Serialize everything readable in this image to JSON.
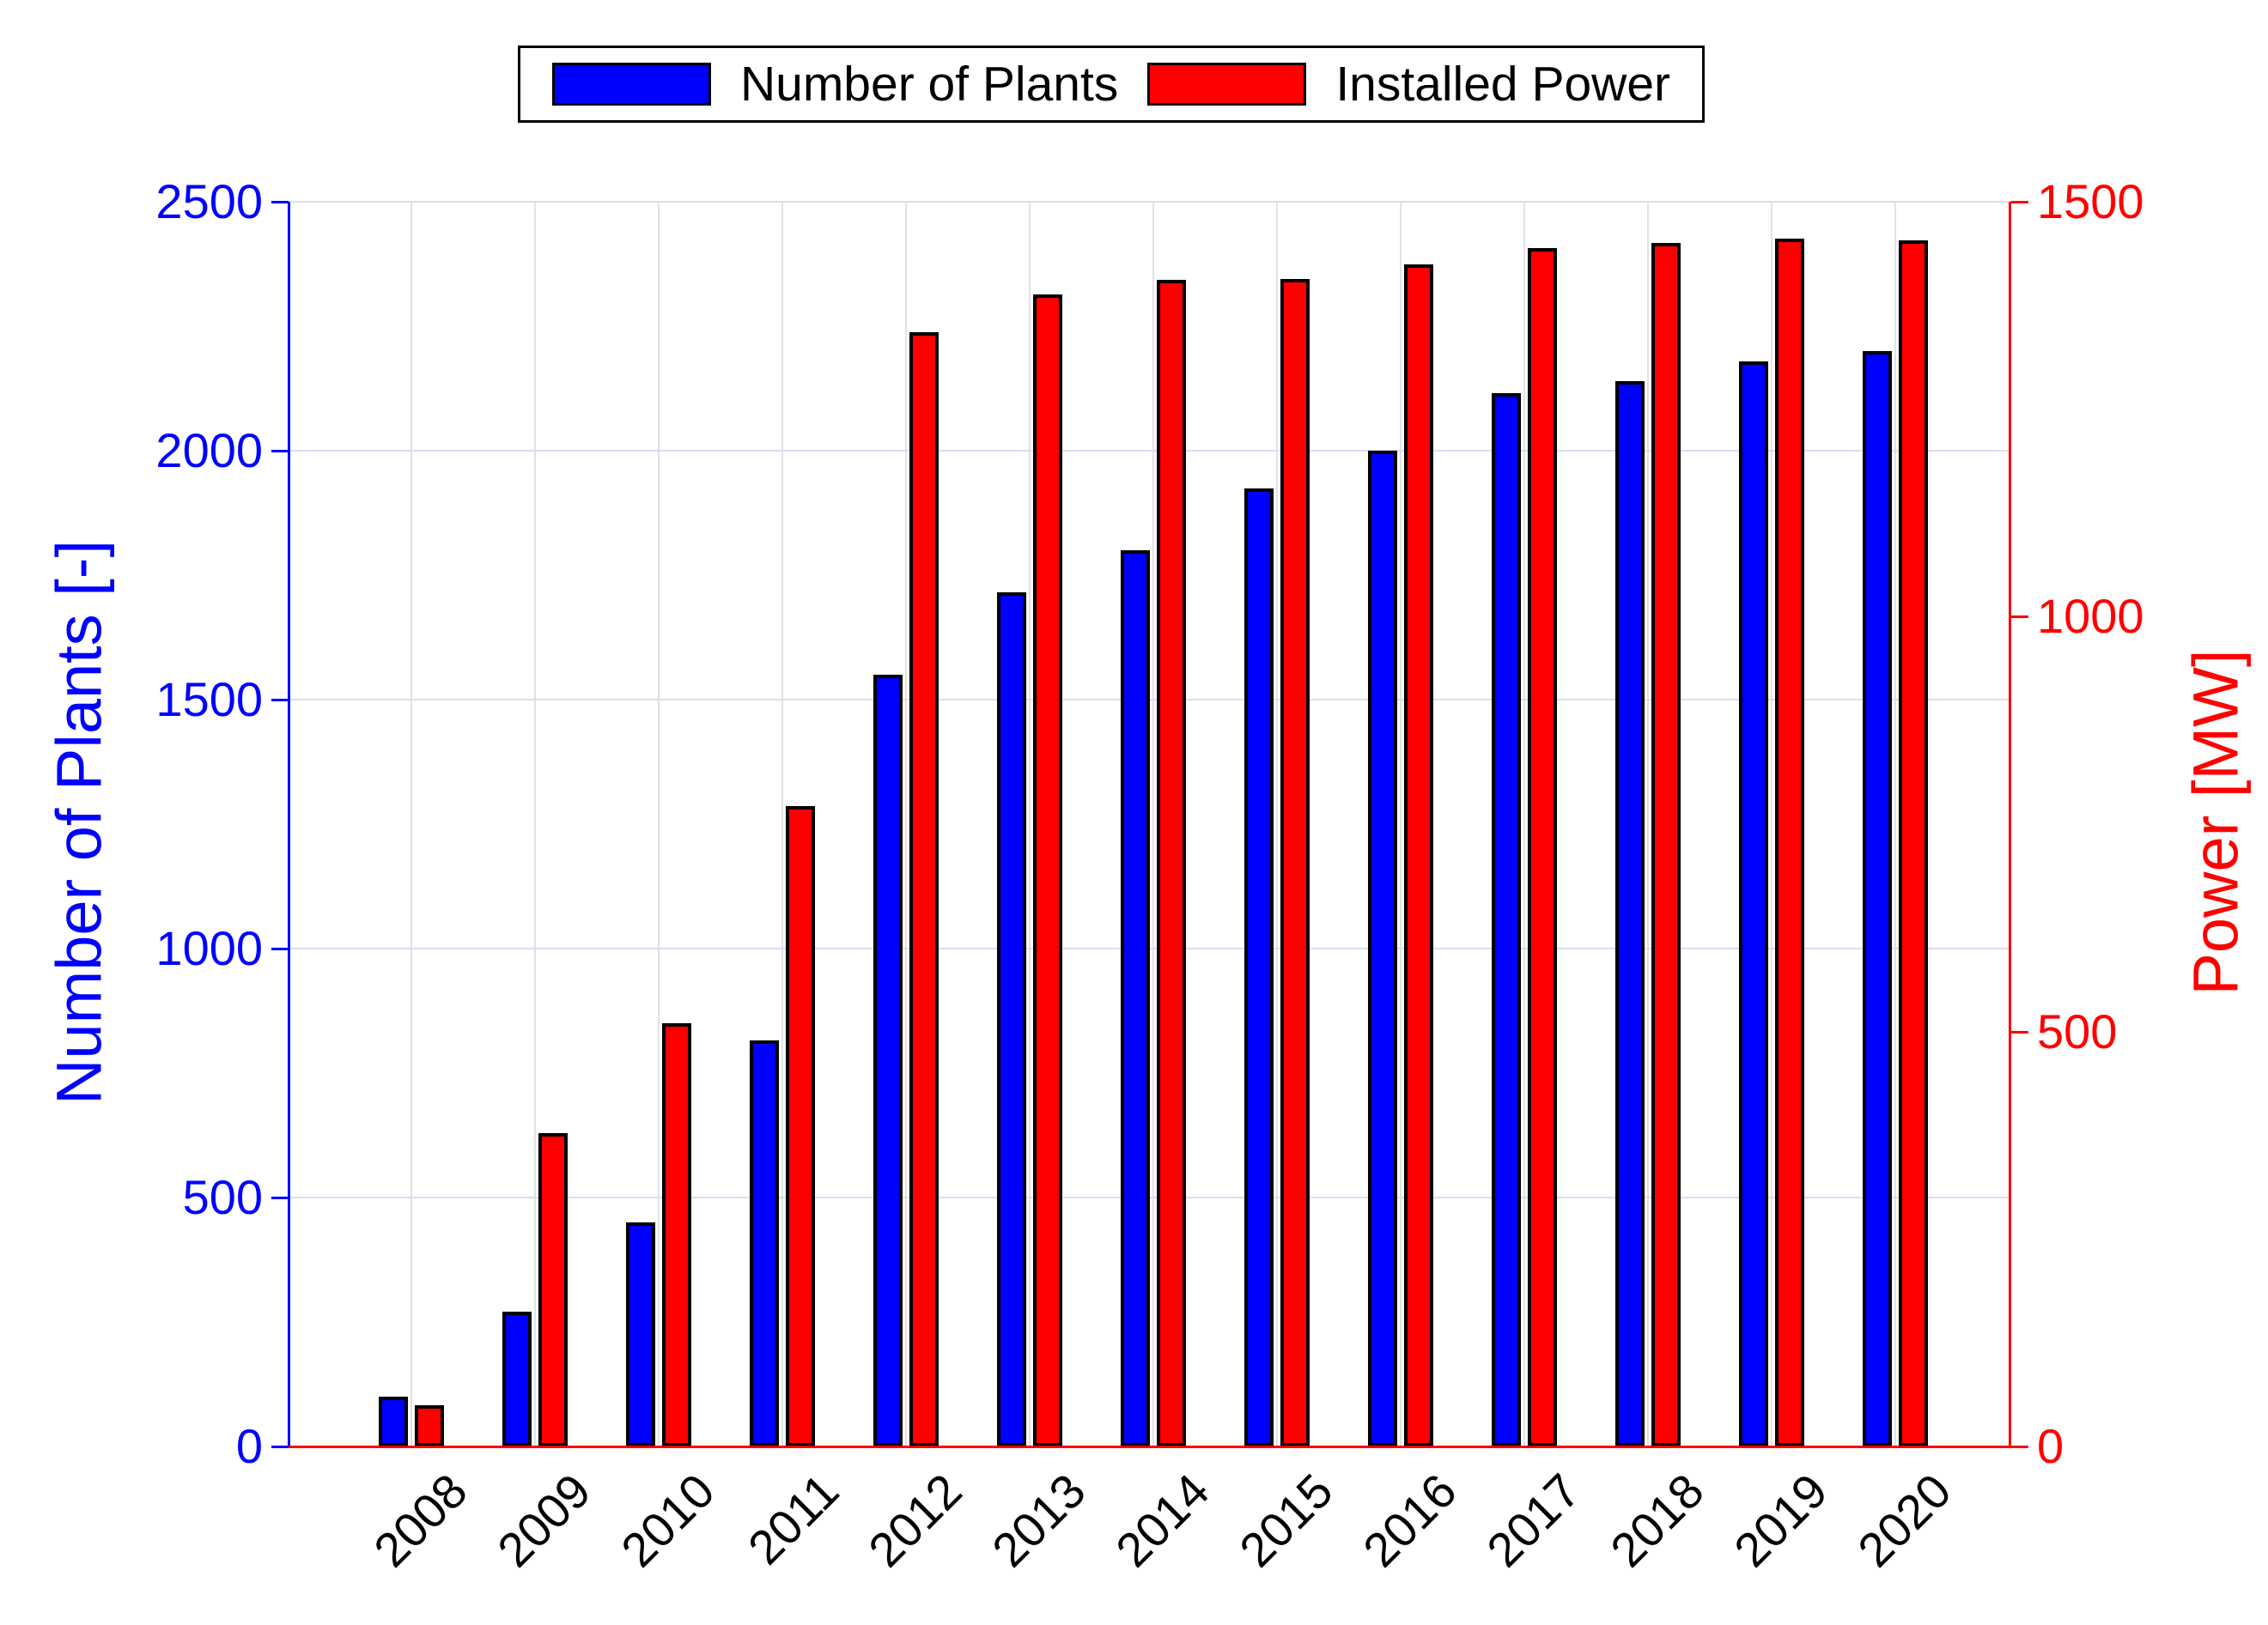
{
  "chart_data": {
    "type": "bar",
    "title": "",
    "categories": [
      "2008",
      "2009",
      "2010",
      "2011",
      "2012",
      "2013",
      "2014",
      "2015",
      "2016",
      "2017",
      "2018",
      "2019",
      "2020"
    ],
    "series": [
      {
        "name": "Number of Plants",
        "axis": "left",
        "color": "#0000ff",
        "values": [
          100,
          270,
          450,
          815,
          1550,
          1715,
          1800,
          1925,
          2000,
          2115,
          2140,
          2180,
          2200
        ]
      },
      {
        "name": "Installed Power",
        "axis": "right",
        "color": "#ff0000",
        "values": [
          50,
          378,
          510,
          772,
          1343,
          1388,
          1406,
          1407,
          1424,
          1444,
          1450,
          1456,
          1453
        ]
      }
    ],
    "left_axis": {
      "label": "Number of Plants [-]",
      "color": "#0000ff",
      "range": [
        0,
        2500
      ],
      "ticks": [
        0,
        500,
        1000,
        1500,
        2000,
        2500
      ]
    },
    "right_axis": {
      "label": "Power [MW]",
      "color": "#ff0000",
      "range": [
        0,
        1500
      ],
      "ticks": [
        0,
        500,
        1000,
        1500
      ]
    },
    "legend": {
      "position": "top",
      "entries": [
        "Number of Plants",
        "Installed Power"
      ]
    },
    "grid": true,
    "bar_border_color": "#000000",
    "x_tick_rotation_deg": 45
  }
}
